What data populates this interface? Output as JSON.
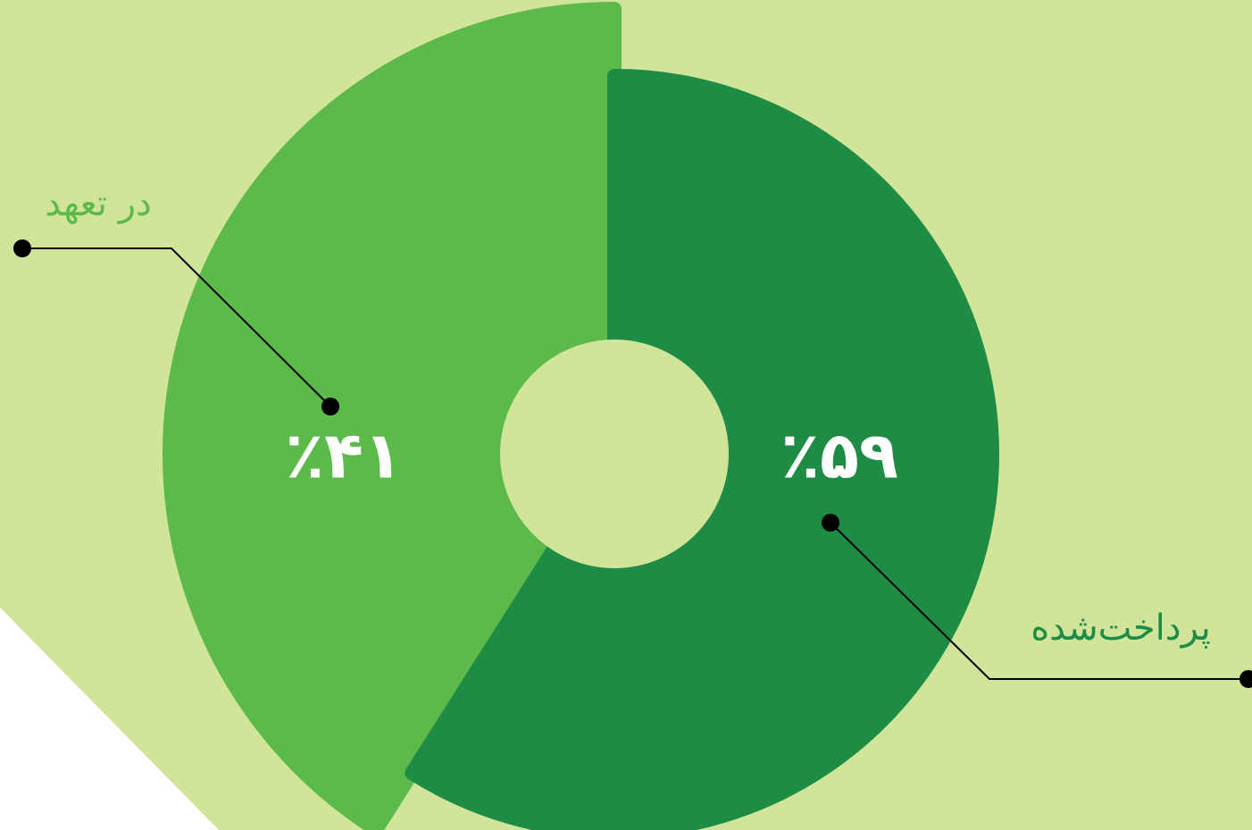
{
  "chart_data": {
    "type": "donut",
    "categories": [
      "در تعهد",
      "پرداخت‌شده"
    ],
    "values": [
      41,
      59
    ],
    "value_labels": [
      "٪۴۱",
      "٪۵۹"
    ],
    "colors": [
      "#5cba4a",
      "#1f8c45"
    ]
  }
}
